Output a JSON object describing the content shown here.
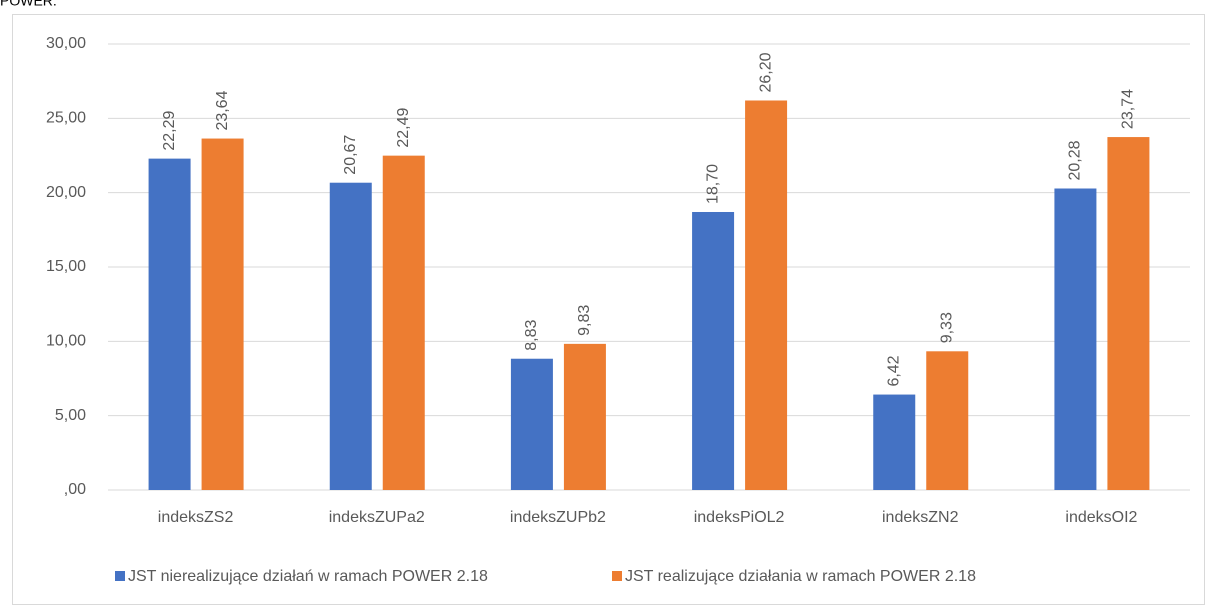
{
  "chart_data": {
    "type": "bar",
    "title": "POWER.",
    "categories": [
      "indeksZS2",
      "indeksZUPa2",
      "indeksZUPb2",
      "indeksPiOL2",
      "indeksZN2",
      "indeksOI2"
    ],
    "series": [
      {
        "name": "JST nierealizujące działań w ramach POWER 2.18",
        "color": "#4472c4",
        "values": [
          22.29,
          20.67,
          8.83,
          18.7,
          6.42,
          20.28
        ],
        "value_labels": [
          "22,29",
          "20,67",
          "8,83",
          "18,70",
          "6,42",
          "20,28"
        ]
      },
      {
        "name": "JST realizujące działania w ramach POWER 2.18",
        "color": "#ed7d31",
        "values": [
          23.64,
          22.49,
          9.83,
          26.2,
          9.33,
          23.74
        ],
        "value_labels": [
          "23,64",
          "22,49",
          "9,83",
          "26,20",
          "9,33",
          "23,74"
        ]
      }
    ],
    "ylim": [
      0,
      30
    ],
    "yticks": [
      {
        "value": 0,
        "label": ",00"
      },
      {
        "value": 5,
        "label": "5,00"
      },
      {
        "value": 10,
        "label": "10,00"
      },
      {
        "value": 15,
        "label": "15,00"
      },
      {
        "value": 20,
        "label": "20,00"
      },
      {
        "value": 25,
        "label": "25,00"
      },
      {
        "value": 30,
        "label": "30,00"
      }
    ],
    "grid": true,
    "legend": "bottom"
  }
}
